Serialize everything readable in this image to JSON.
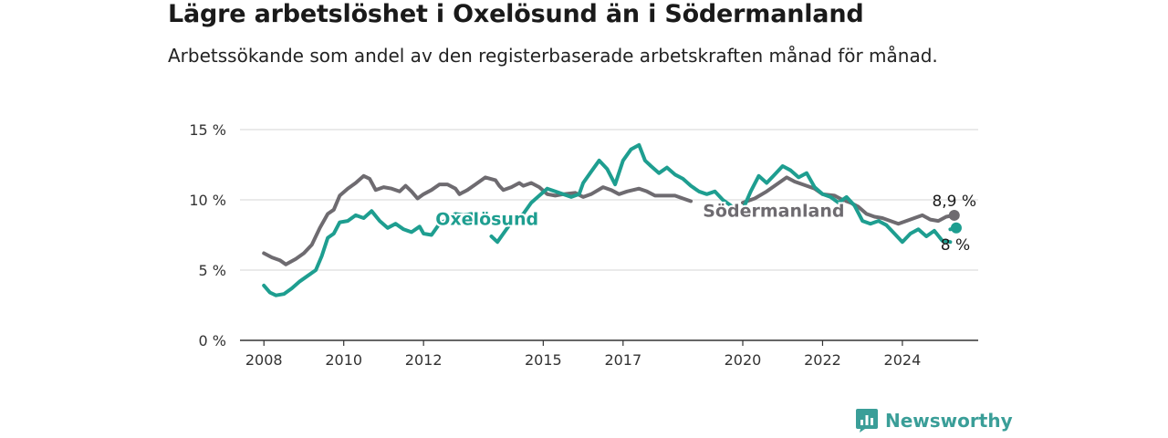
{
  "title": "Lägre arbetslöshet i Oxelösund än i Södermanland",
  "subtitle": "Arbetssökande som andel av den registerbaserade arbetskraften månad för månad.",
  "brand": {
    "name": "Newsworthy",
    "color": "#3a9e98"
  },
  "chart_data": {
    "type": "line",
    "ylim": [
      0,
      15
    ],
    "xlim": [
      2007.4,
      2025.9
    ],
    "y_ticks": [
      0,
      5,
      10,
      15
    ],
    "y_tick_labels": [
      "0 %",
      "5 %",
      "10 %",
      "15 %"
    ],
    "x_ticks": [
      2008,
      2010,
      2012,
      2015,
      2017,
      2020,
      2022,
      2024
    ],
    "x_tick_labels": [
      "2008",
      "2010",
      "2012",
      "2015",
      "2017",
      "2020",
      "2022",
      "2024"
    ],
    "grid": true,
    "series": [
      {
        "name": "Södermanland",
        "color": "#6e6b70",
        "end_label": "8,9 %",
        "segments": [
          [
            [
              2008.0,
              6.2
            ],
            [
              2008.2,
              5.9
            ],
            [
              2008.4,
              5.7
            ],
            [
              2008.55,
              5.4
            ],
            [
              2008.8,
              5.8
            ],
            [
              2009.0,
              6.2
            ],
            [
              2009.2,
              6.8
            ],
            [
              2009.4,
              8.0
            ],
            [
              2009.6,
              9.0
            ],
            [
              2009.75,
              9.3
            ],
            [
              2009.9,
              10.3
            ],
            [
              2010.1,
              10.8
            ],
            [
              2010.3,
              11.2
            ],
            [
              2010.5,
              11.7
            ],
            [
              2010.65,
              11.5
            ],
            [
              2010.8,
              10.7
            ],
            [
              2011.0,
              10.9
            ],
            [
              2011.2,
              10.8
            ],
            [
              2011.4,
              10.6
            ],
            [
              2011.55,
              11.0
            ],
            [
              2011.7,
              10.6
            ],
            [
              2011.85,
              10.1
            ],
            [
              2012.0,
              10.4
            ],
            [
              2012.2,
              10.7
            ],
            [
              2012.4,
              11.1
            ],
            [
              2012.6,
              11.1
            ],
            [
              2012.8,
              10.8
            ],
            [
              2012.9,
              10.4
            ],
            [
              2013.1,
              10.7
            ],
            [
              2013.3,
              11.1
            ],
            [
              2013.55,
              11.6
            ],
            [
              2013.8,
              11.4
            ],
            [
              2013.9,
              11.0
            ],
            [
              2014.0,
              10.7
            ],
            [
              2014.2,
              10.9
            ],
            [
              2014.4,
              11.2
            ],
            [
              2014.5,
              11.0
            ],
            [
              2014.7,
              11.2
            ],
            [
              2014.9,
              10.9
            ],
            [
              2015.1,
              10.4
            ],
            [
              2015.3,
              10.3
            ],
            [
              2015.5,
              10.4
            ],
            [
              2015.8,
              10.5
            ],
            [
              2016.0,
              10.2
            ],
            [
              2016.2,
              10.4
            ],
            [
              2016.5,
              10.9
            ],
            [
              2016.7,
              10.7
            ],
            [
              2016.9,
              10.4
            ],
            [
              2017.1,
              10.6
            ],
            [
              2017.4,
              10.8
            ],
            [
              2017.6,
              10.6
            ],
            [
              2017.8,
              10.3
            ],
            [
              2018.0,
              10.3
            ],
            [
              2018.3,
              10.3
            ],
            [
              2018.5,
              10.1
            ],
            [
              2018.7,
              9.9
            ]
          ],
          [
            [
              2020.0,
              9.8
            ],
            [
              2020.3,
              10.1
            ],
            [
              2020.6,
              10.6
            ],
            [
              2020.9,
              11.2
            ],
            [
              2021.1,
              11.6
            ],
            [
              2021.3,
              11.3
            ],
            [
              2021.6,
              11.0
            ],
            [
              2021.8,
              10.8
            ],
            [
              2022.0,
              10.4
            ],
            [
              2022.3,
              10.3
            ],
            [
              2022.5,
              10.0
            ],
            [
              2022.7,
              9.8
            ],
            [
              2022.9,
              9.5
            ],
            [
              2023.1,
              9.0
            ],
            [
              2023.3,
              8.8
            ],
            [
              2023.5,
              8.7
            ],
            [
              2023.7,
              8.5
            ],
            [
              2023.9,
              8.3
            ],
            [
              2024.1,
              8.5
            ],
            [
              2024.3,
              8.7
            ],
            [
              2024.5,
              8.9
            ],
            [
              2024.7,
              8.6
            ],
            [
              2024.9,
              8.5
            ],
            [
              2025.1,
              8.8
            ],
            [
              2025.3,
              8.9
            ]
          ]
        ]
      },
      {
        "name": "Oxelösund",
        "color": "#1e9e90",
        "end_label": "8 %",
        "segments": [
          [
            [
              2008.0,
              3.9
            ],
            [
              2008.15,
              3.4
            ],
            [
              2008.3,
              3.2
            ],
            [
              2008.5,
              3.3
            ],
            [
              2008.7,
              3.7
            ],
            [
              2008.9,
              4.2
            ],
            [
              2009.1,
              4.6
            ],
            [
              2009.3,
              5.0
            ],
            [
              2009.45,
              6.0
            ],
            [
              2009.6,
              7.3
            ],
            [
              2009.75,
              7.6
            ],
            [
              2009.9,
              8.4
            ],
            [
              2010.1,
              8.5
            ],
            [
              2010.3,
              8.9
            ],
            [
              2010.5,
              8.7
            ],
            [
              2010.7,
              9.2
            ],
            [
              2010.9,
              8.5
            ],
            [
              2011.1,
              8.0
            ],
            [
              2011.3,
              8.3
            ],
            [
              2011.5,
              7.9
            ],
            [
              2011.7,
              7.7
            ],
            [
              2011.9,
              8.1
            ],
            [
              2012.0,
              7.6
            ],
            [
              2012.2,
              7.5
            ],
            [
              2012.4,
              8.3
            ],
            [
              2012.6,
              8.6
            ],
            [
              2012.8,
              9.0
            ],
            [
              2013.0,
              8.9
            ],
            [
              2013.2,
              9.0
            ]
          ],
          [
            [
              2013.7,
              7.4
            ],
            [
              2013.85,
              7.0
            ],
            [
              2014.0,
              7.6
            ],
            [
              2014.2,
              8.4
            ],
            [
              2014.5,
              9.0
            ],
            [
              2014.7,
              9.8
            ],
            [
              2014.9,
              10.3
            ],
            [
              2015.1,
              10.8
            ],
            [
              2015.3,
              10.6
            ],
            [
              2015.5,
              10.4
            ],
            [
              2015.7,
              10.2
            ],
            [
              2015.9,
              10.4
            ],
            [
              2016.0,
              11.2
            ],
            [
              2016.2,
              12.0
            ],
            [
              2016.4,
              12.8
            ],
            [
              2016.6,
              12.2
            ],
            [
              2016.8,
              11.1
            ],
            [
              2017.0,
              12.8
            ],
            [
              2017.2,
              13.6
            ],
            [
              2017.4,
              13.9
            ],
            [
              2017.55,
              12.8
            ],
            [
              2017.7,
              12.4
            ],
            [
              2017.9,
              11.9
            ],
            [
              2018.1,
              12.3
            ],
            [
              2018.3,
              11.8
            ],
            [
              2018.5,
              11.5
            ],
            [
              2018.7,
              11.0
            ],
            [
              2018.9,
              10.6
            ],
            [
              2019.1,
              10.4
            ],
            [
              2019.3,
              10.6
            ],
            [
              2019.5,
              10.0
            ],
            [
              2019.7,
              9.6
            ]
          ],
          [
            [
              2020.0,
              9.3
            ],
            [
              2020.2,
              10.6
            ],
            [
              2020.4,
              11.7
            ],
            [
              2020.6,
              11.2
            ],
            [
              2020.8,
              11.8
            ],
            [
              2021.0,
              12.4
            ],
            [
              2021.2,
              12.1
            ],
            [
              2021.4,
              11.6
            ],
            [
              2021.6,
              11.9
            ],
            [
              2021.8,
              10.9
            ],
            [
              2022.0,
              10.4
            ],
            [
              2022.2,
              10.2
            ],
            [
              2022.4,
              9.8
            ],
            [
              2022.6,
              10.2
            ],
            [
              2022.8,
              9.6
            ],
            [
              2023.0,
              8.5
            ],
            [
              2023.2,
              8.3
            ],
            [
              2023.4,
              8.5
            ],
            [
              2023.6,
              8.2
            ],
            [
              2023.8,
              7.6
            ],
            [
              2024.0,
              7.0
            ],
            [
              2024.2,
              7.6
            ],
            [
              2024.4,
              7.9
            ],
            [
              2024.6,
              7.4
            ],
            [
              2024.8,
              7.8
            ],
            [
              2025.0,
              7.1
            ],
            [
              2025.2,
              7.0
            ]
          ],
          [
            [
              2025.2,
              7.9
            ],
            [
              2025.35,
              8.0
            ]
          ]
        ]
      }
    ],
    "series_labels": [
      {
        "series": "Oxelösund",
        "text": "Oxelösund",
        "x": 2012.3,
        "y": 8.2
      },
      {
        "series": "Södermanland",
        "text": "Södermanland",
        "x": 2019.0,
        "y": 8.8
      }
    ]
  }
}
